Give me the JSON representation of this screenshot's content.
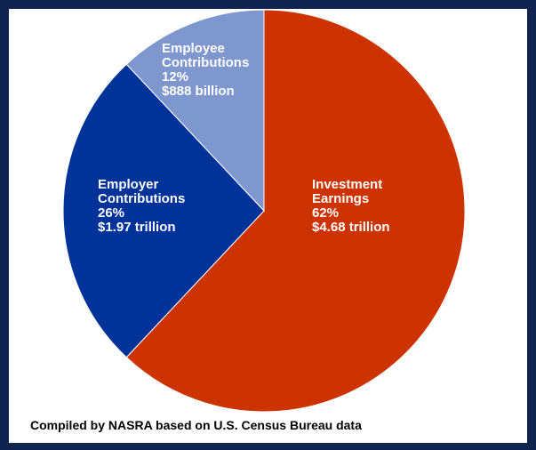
{
  "chart_data": {
    "type": "pie",
    "title": "",
    "slices": [
      {
        "key": "investment",
        "lines": [
          "Investment",
          "Earnings"
        ],
        "percent_label": "62%",
        "amount_label": "$4.68 trillion",
        "value": 62,
        "color": "#cc3300"
      },
      {
        "key": "employer",
        "lines": [
          "Employer",
          "Contributions"
        ],
        "percent_label": "26%",
        "amount_label": "$1.97 trillion",
        "value": 26,
        "color": "#003399"
      },
      {
        "key": "employee",
        "lines": [
          "Employee",
          "Contributions"
        ],
        "percent_label": "12%",
        "amount_label": "$888 billion",
        "value": 12,
        "color": "#7f97cf"
      }
    ],
    "start_angle_deg": 0,
    "direction": "clockwise"
  },
  "source_note": "Compiled by NASRA based on U.S. Census Bureau data",
  "colors": {
    "frame": "#0f2550",
    "panel": "#ffffff",
    "slice_border": "#ffffff",
    "label_text": "#ffffff"
  }
}
